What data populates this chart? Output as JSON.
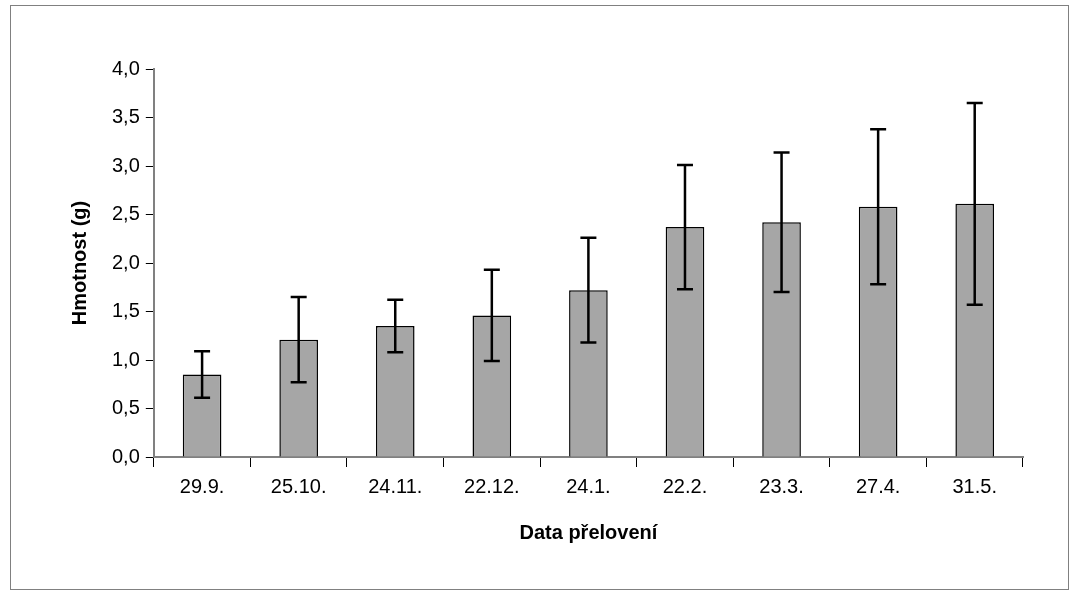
{
  "chart_data": {
    "type": "bar",
    "xlabel": "Data přelovení",
    "ylabel": "Hmotnost (g)",
    "categories": [
      "29.9.",
      "25.10.",
      "24.11.",
      "22.12.",
      "24.1.",
      "22.2.",
      "23.3.",
      "27.4.",
      "31.5."
    ],
    "values": [
      0.85,
      1.21,
      1.35,
      1.46,
      1.72,
      2.37,
      2.42,
      2.58,
      2.61
    ],
    "errors": [
      0.24,
      0.44,
      0.27,
      0.47,
      0.54,
      0.64,
      0.72,
      0.8,
      1.04
    ],
    "color": "#a6a6a6",
    "ylim": [
      0,
      4
    ],
    "yticks": [
      {
        "value": 0,
        "label": "0,0"
      },
      {
        "value": 0.5,
        "label": "0,5"
      },
      {
        "value": 1,
        "label": "1,0"
      },
      {
        "value": 1.5,
        "label": "1,5"
      },
      {
        "value": 2,
        "label": "2,0"
      },
      {
        "value": 2.5,
        "label": "2,5"
      },
      {
        "value": 3,
        "label": "3,0"
      },
      {
        "value": 3.5,
        "label": "3,5"
      },
      {
        "value": 4,
        "label": "4,0"
      }
    ],
    "grid": false,
    "legend": false
  }
}
